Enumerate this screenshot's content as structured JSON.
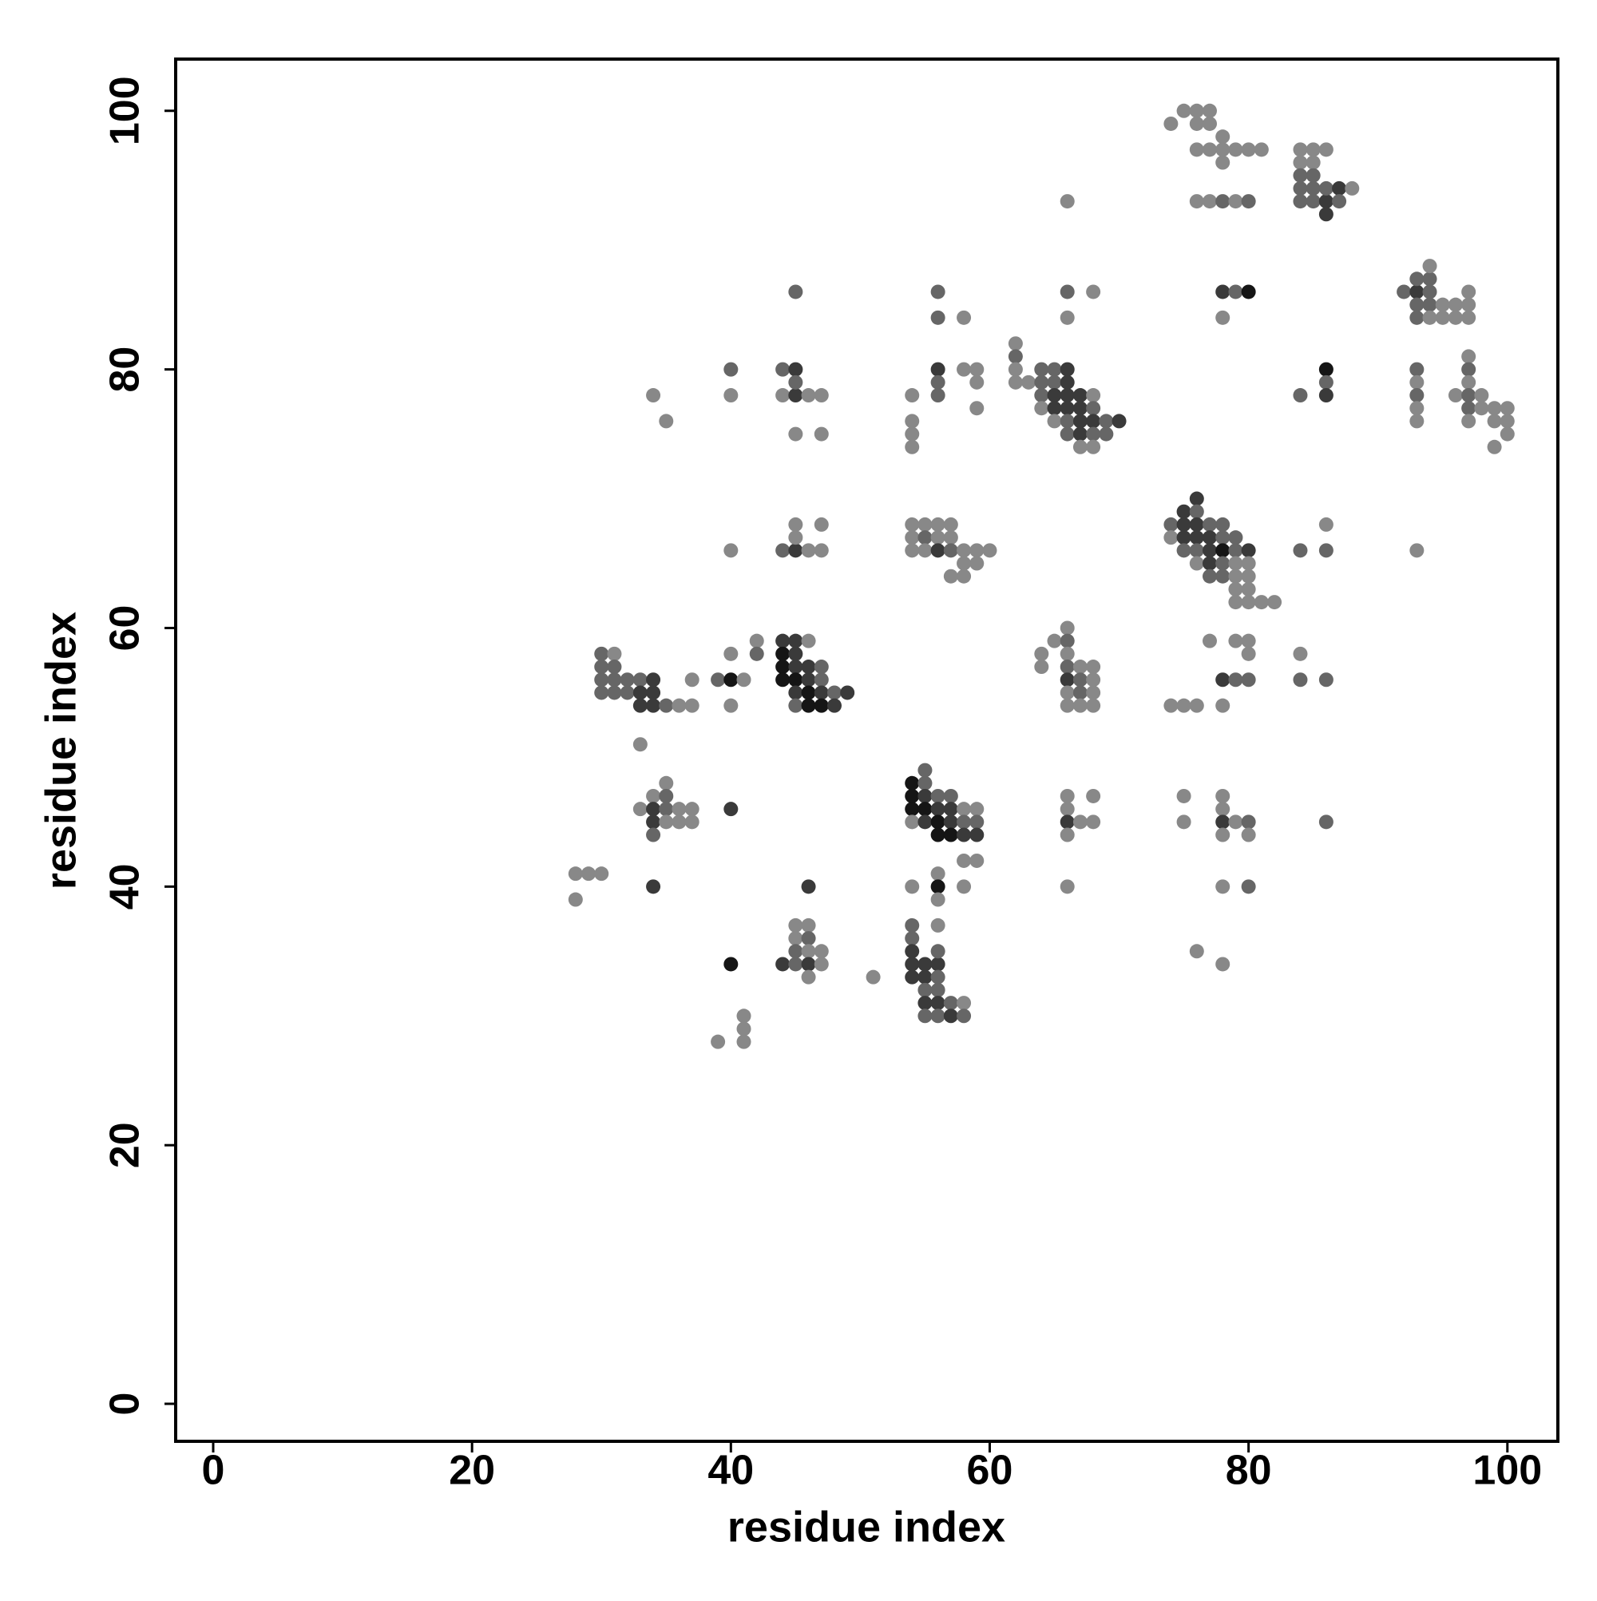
{
  "chart_data": {
    "type": "scatter",
    "x_label": "residue index",
    "y_label": "residue index",
    "xlim": [
      -2.9,
      103.9
    ],
    "ylim": [
      -2.9,
      104
    ],
    "xticks": [
      0,
      20,
      40,
      60,
      80,
      100
    ],
    "yticks": [
      0,
      20,
      40,
      60,
      80,
      100
    ],
    "x": [
      74,
      75,
      76,
      77,
      76,
      77,
      76,
      77,
      78,
      78,
      79,
      80,
      81,
      78,
      76,
      77,
      78,
      79,
      80,
      66,
      84,
      85,
      86,
      84,
      85,
      84,
      85,
      84,
      85,
      84,
      85,
      86,
      86,
      87,
      87,
      88,
      86,
      92,
      93,
      93,
      94,
      94,
      93,
      94,
      95,
      96,
      97,
      93,
      94,
      95,
      96,
      97,
      97,
      94,
      45,
      56,
      66,
      68,
      78,
      79,
      80,
      56,
      66,
      78,
      58,
      62,
      62,
      62,
      62,
      63,
      64,
      65,
      66,
      64,
      65,
      66,
      64,
      65,
      66,
      67,
      68,
      64,
      65,
      66,
      67,
      68,
      65,
      66,
      67,
      68,
      69,
      70,
      66,
      67,
      68,
      69,
      67,
      68,
      40,
      40,
      44,
      45,
      44,
      45,
      46,
      47,
      45,
      45,
      47,
      34,
      35,
      54,
      54,
      54,
      54,
      56,
      56,
      56,
      58,
      59,
      59,
      59,
      84,
      86,
      86,
      86,
      93,
      93,
      93,
      93,
      93,
      97,
      97,
      97,
      96,
      97,
      98,
      97,
      98,
      99,
      100,
      97,
      99,
      100,
      100,
      99,
      76,
      75,
      76,
      74,
      75,
      76,
      77,
      78,
      74,
      75,
      76,
      77,
      78,
      79,
      75,
      76,
      77,
      78,
      79,
      80,
      76,
      77,
      78,
      79,
      80,
      77,
      78,
      79,
      80,
      79,
      80,
      79,
      80,
      81,
      82,
      84,
      86,
      86,
      93,
      40,
      44,
      45,
      46,
      47,
      45,
      45,
      47,
      54,
      55,
      56,
      57,
      54,
      55,
      56,
      57,
      54,
      55,
      56,
      57,
      58,
      59,
      60,
      58,
      59,
      57,
      58,
      30,
      31,
      30,
      31,
      30,
      31,
      32,
      33,
      34,
      30,
      31,
      32,
      33,
      34,
      33,
      34,
      35,
      36,
      37,
      37,
      33,
      39,
      40,
      41,
      40,
      40,
      42,
      42,
      44,
      45,
      46,
      44,
      45,
      44,
      45,
      46,
      47,
      44,
      45,
      46,
      47,
      45,
      46,
      47,
      48,
      49,
      45,
      46,
      47,
      48,
      64,
      64,
      65,
      66,
      66,
      66,
      66,
      67,
      68,
      66,
      67,
      68,
      66,
      67,
      68,
      66,
      67,
      68,
      74,
      75,
      76,
      77,
      78,
      79,
      80,
      79,
      80,
      80,
      78,
      84,
      84,
      86,
      55,
      54,
      55,
      54,
      55,
      56,
      57,
      54,
      55,
      56,
      57,
      58,
      59,
      54,
      55,
      56,
      57,
      58,
      59,
      56,
      57,
      58,
      59,
      58,
      59,
      34,
      35,
      35,
      33,
      34,
      35,
      36,
      37,
      34,
      35,
      36,
      37,
      34,
      40,
      66,
      66,
      66,
      67,
      68,
      66,
      68,
      75,
      75,
      78,
      78,
      78,
      79,
      80,
      78,
      80,
      86,
      28,
      29,
      30,
      28,
      34,
      46,
      54,
      56,
      56,
      56,
      58,
      66,
      78,
      80,
      45,
      46,
      45,
      46,
      44,
      45,
      46,
      47,
      45,
      46,
      46,
      47,
      40,
      51,
      54,
      54,
      54,
      54,
      55,
      56,
      54,
      55,
      56,
      55,
      56,
      55,
      56,
      57,
      58,
      55,
      56,
      57,
      58,
      56,
      56,
      39,
      41,
      41,
      41,
      76,
      78
    ],
    "y": [
      99,
      100,
      100,
      100,
      99,
      99,
      97,
      97,
      97,
      98,
      97,
      97,
      97,
      96,
      93,
      93,
      93,
      93,
      93,
      93,
      97,
      97,
      97,
      96,
      96,
      95,
      95,
      94,
      94,
      93,
      93,
      93,
      94,
      94,
      93,
      94,
      92,
      86,
      86,
      87,
      87,
      88,
      85,
      85,
      85,
      85,
      85,
      84,
      84,
      84,
      84,
      84,
      86,
      86,
      86,
      86,
      86,
      86,
      86,
      86,
      86,
      84,
      84,
      84,
      84,
      82,
      81,
      80,
      79,
      79,
      80,
      80,
      80,
      79,
      79,
      79,
      78,
      78,
      78,
      78,
      78,
      77,
      77,
      77,
      77,
      77,
      76,
      76,
      76,
      76,
      76,
      76,
      75,
      75,
      75,
      75,
      74,
      74,
      80,
      78,
      80,
      80,
      78,
      78,
      78,
      78,
      79,
      75,
      75,
      78,
      76,
      78,
      76,
      75,
      74,
      80,
      79,
      78,
      80,
      80,
      79,
      77,
      78,
      80,
      79,
      78,
      80,
      79,
      78,
      77,
      76,
      81,
      80,
      79,
      78,
      78,
      78,
      77,
      77,
      77,
      77,
      76,
      76,
      76,
      75,
      74,
      70,
      69,
      69,
      68,
      68,
      68,
      68,
      68,
      67,
      67,
      67,
      67,
      67,
      67,
      66,
      66,
      66,
      66,
      66,
      66,
      65,
      65,
      65,
      65,
      65,
      64,
      64,
      64,
      64,
      63,
      63,
      62,
      62,
      62,
      62,
      66,
      68,
      66,
      66,
      66,
      66,
      66,
      66,
      66,
      68,
      67,
      68,
      68,
      68,
      68,
      68,
      67,
      67,
      67,
      67,
      66,
      66,
      66,
      66,
      66,
      66,
      66,
      65,
      65,
      64,
      64,
      58,
      58,
      57,
      57,
      56,
      56,
      56,
      56,
      56,
      55,
      55,
      55,
      55,
      55,
      54,
      54,
      54,
      54,
      54,
      56,
      51,
      56,
      56,
      56,
      58,
      54,
      59,
      58,
      59,
      59,
      59,
      58,
      58,
      57,
      57,
      57,
      57,
      56,
      56,
      56,
      56,
      55,
      55,
      55,
      55,
      55,
      54,
      54,
      54,
      54,
      58,
      57,
      59,
      60,
      59,
      58,
      57,
      57,
      57,
      56,
      56,
      56,
      55,
      55,
      55,
      54,
      54,
      54,
      54,
      54,
      54,
      59,
      56,
      56,
      56,
      59,
      59,
      58,
      54,
      58,
      56,
      56,
      49,
      48,
      48,
      47,
      47,
      47,
      47,
      46,
      46,
      46,
      46,
      46,
      46,
      45,
      45,
      45,
      45,
      45,
      45,
      44,
      44,
      44,
      44,
      42,
      42,
      47,
      48,
      47,
      46,
      46,
      46,
      46,
      46,
      45,
      45,
      45,
      45,
      44,
      46,
      47,
      46,
      45,
      45,
      45,
      44,
      47,
      47,
      45,
      47,
      46,
      45,
      45,
      45,
      44,
      44,
      45,
      41,
      41,
      41,
      39,
      40,
      40,
      40,
      41,
      40,
      39,
      40,
      40,
      40,
      40,
      37,
      37,
      36,
      36,
      34,
      35,
      35,
      35,
      34,
      34,
      33,
      34,
      34,
      33,
      37,
      36,
      35,
      34,
      34,
      34,
      33,
      33,
      33,
      32,
      32,
      31,
      31,
      31,
      31,
      30,
      30,
      30,
      30,
      37,
      35,
      28,
      30,
      29,
      28,
      35,
      34
    ],
    "colors": [
      "#888",
      "#888",
      "#888",
      "#888",
      "#888",
      "#888",
      "#888",
      "#888",
      "#888",
      "#888",
      "#888",
      "#888",
      "#888",
      "#888",
      "#888",
      "#888",
      "#666",
      "#888",
      "#666",
      "#888",
      "#888",
      "#888",
      "#888",
      "#888",
      "#888",
      "#666",
      "#666",
      "#666",
      "#666",
      "#666",
      "#666",
      "#3a3a3a",
      "#666",
      "#3a3a3a",
      "#666",
      "#888",
      "#3a3a3a",
      "#666",
      "#3a3a3a",
      "#666",
      "#666",
      "#888",
      "#666",
      "#666",
      "#888",
      "#888",
      "#888",
      "#666",
      "#888",
      "#888",
      "#888",
      "#888",
      "#888",
      "#666",
      "#666",
      "#666",
      "#666",
      "#888",
      "#3a3a3a",
      "#666",
      "#151515",
      "#666",
      "#888",
      "#888",
      "#888",
      "#888",
      "#666",
      "#888",
      "#888",
      "#888",
      "#666",
      "#666",
      "#3a3a3a",
      "#666",
      "#666",
      "#3a3a3a",
      "#666",
      "#3a3a3a",
      "#3a3a3a",
      "#3a3a3a",
      "#888",
      "#888",
      "#3a3a3a",
      "#3a3a3a",
      "#3a3a3a",
      "#666",
      "#888",
      "#666",
      "#3a3a3a",
      "#3a3a3a",
      "#666",
      "#3a3a3a",
      "#666",
      "#3a3a3a",
      "#666",
      "#666",
      "#888",
      "#888",
      "#666",
      "#888",
      "#666",
      "#3a3a3a",
      "#888",
      "#3a3a3a",
      "#888",
      "#888",
      "#666",
      "#888",
      "#888",
      "#888",
      "#888",
      "#888",
      "#888",
      "#888",
      "#888",
      "#3a3a3a",
      "#666",
      "#666",
      "#888",
      "#888",
      "#888",
      "#888",
      "#666",
      "#151515",
      "#666",
      "#3a3a3a",
      "#666",
      "#888",
      "#666",
      "#888",
      "#888",
      "#888",
      "#666",
      "#888",
      "#888",
      "#666",
      "#888",
      "#666",
      "#888",
      "#888",
      "#888",
      "#888",
      "#888",
      "#888",
      "#888",
      "#888",
      "#3a3a3a",
      "#3a3a3a",
      "#666",
      "#666",
      "#3a3a3a",
      "#3a3a3a",
      "#666",
      "#666",
      "#888",
      "#3a3a3a",
      "#3a3a3a",
      "#3a3a3a",
      "#666",
      "#666",
      "#666",
      "#666",
      "#3a3a3a",
      "#151515",
      "#666",
      "#3a3a3a",
      "#888",
      "#3a3a3a",
      "#666",
      "#888",
      "#888",
      "#666",
      "#666",
      "#888",
      "#888",
      "#888",
      "#888",
      "#888",
      "#888",
      "#888",
      "#888",
      "#666",
      "#888",
      "#666",
      "#888",
      "#888",
      "#666",
      "#3a3a3a",
      "#888",
      "#888",
      "#888",
      "#888",
      "#888",
      "#888",
      "#888",
      "#888",
      "#888",
      "#888",
      "#666",
      "#888",
      "#888",
      "#888",
      "#888",
      "#3a3a3a",
      "#666",
      "#888",
      "#888",
      "#888",
      "#888",
      "#888",
      "#888",
      "#888",
      "#666",
      "#888",
      "#666",
      "#666",
      "#666",
      "#666",
      "#666",
      "#666",
      "#3a3a3a",
      "#666",
      "#666",
      "#666",
      "#3a3a3a",
      "#3a3a3a",
      "#3a3a3a",
      "#3a3a3a",
      "#666",
      "#888",
      "#888",
      "#888",
      "#888",
      "#666",
      "#151515",
      "#888",
      "#888",
      "#888",
      "#888",
      "#666",
      "#3a3a3a",
      "#3a3a3a",
      "#888",
      "#151515",
      "#3a3a3a",
      "#151515",
      "#3a3a3a",
      "#3a3a3a",
      "#666",
      "#151515",
      "#151515",
      "#3a3a3a",
      "#666",
      "#3a3a3a",
      "#151515",
      "#3a3a3a",
      "#666",
      "#3a3a3a",
      "#666",
      "#151515",
      "#151515",
      "#3a3a3a",
      "#888",
      "#888",
      "#888",
      "#888",
      "#666",
      "#888",
      "#666",
      "#888",
      "#888",
      "#3a3a3a",
      "#666",
      "#888",
      "#888",
      "#666",
      "#888",
      "#888",
      "#888",
      "#888",
      "#888",
      "#888",
      "#888",
      "#888",
      "#3a3a3a",
      "#666",
      "#666",
      "#888",
      "#888",
      "#888",
      "#888",
      "#888",
      "#666",
      "#666",
      "#666",
      "#151515",
      "#666",
      "#151515",
      "#3a3a3a",
      "#666",
      "#666",
      "#151515",
      "#151515",
      "#3a3a3a",
      "#3a3a3a",
      "#888",
      "#888",
      "#888",
      "#3a3a3a",
      "#151515",
      "#3a3a3a",
      "#666",
      "#666",
      "#151515",
      "#151515",
      "#3a3a3a",
      "#3a3a3a",
      "#888",
      "#888",
      "#888",
      "#888",
      "#666",
      "#888",
      "#3a3a3a",
      "#666",
      "#888",
      "#888",
      "#3a3a3a",
      "#888",
      "#888",
      "#888",
      "#666",
      "#3a3a3a",
      "#888",
      "#888",
      "#3a3a3a",
      "#888",
      "#888",
      "#888",
      "#888",
      "#888",
      "#888",
      "#888",
      "#888",
      "#3a3a3a",
      "#888",
      "#666",
      "#888",
      "#888",
      "#666",
      "#888",
      "#888",
      "#888",
      "#888",
      "#3a3a3a",
      "#3a3a3a",
      "#888",
      "#888",
      "#151515",
      "#888",
      "#888",
      "#888",
      "#888",
      "#666",
      "#888",
      "#888",
      "#888",
      "#666",
      "#3a3a3a",
      "#666",
      "#888",
      "#888",
      "#666",
      "#3a3a3a",
      "#888",
      "#888",
      "#151515",
      "#888",
      "#666",
      "#666",
      "#3a3a3a",
      "#3a3a3a",
      "#3a3a3a",
      "#3a3a3a",
      "#3a3a3a",
      "#3a3a3a",
      "#666",
      "#666",
      "#666",
      "#3a3a3a",
      "#3a3a3a",
      "#666",
      "#888",
      "#666",
      "#666",
      "#3a3a3a",
      "#666",
      "#888",
      "#666",
      "#888",
      "#888",
      "#888",
      "#888",
      "#888",
      "#888"
    ]
  }
}
